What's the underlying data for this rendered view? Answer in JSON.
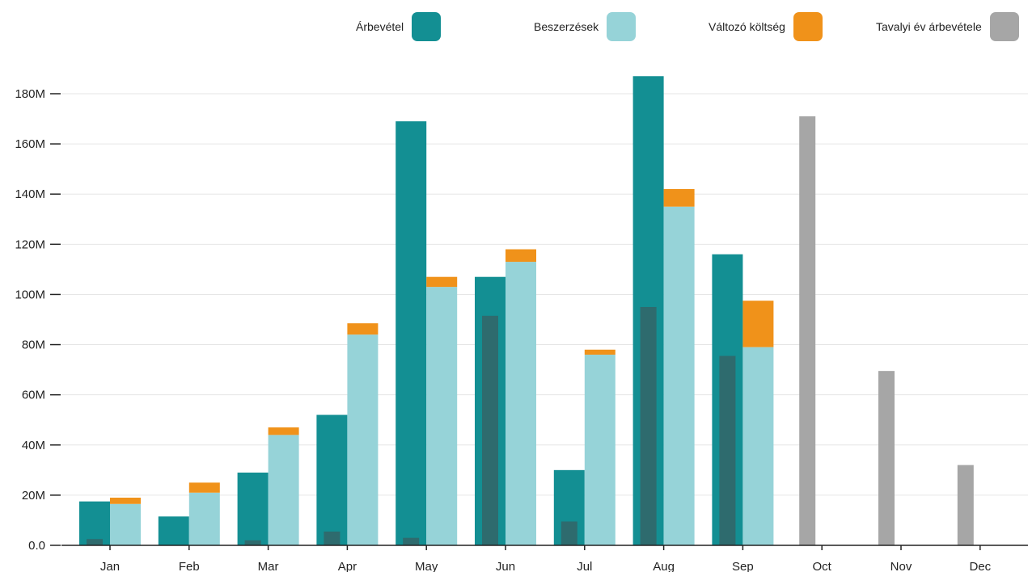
{
  "legend": {
    "revenue": "Árbevétel",
    "purchases": "Beszerzések",
    "variable_cost": "Változó költség",
    "last_year": "Tavalyi év árbevétele"
  },
  "colors": {
    "revenue": "#138f93",
    "purchases": "#96d3d8",
    "variable_cost": "#f0921a",
    "last_year": "#a6a6a6",
    "inner": "#2e6b6e",
    "grid": "#e6e6e6",
    "axis": "#222222"
  },
  "chart_data": {
    "type": "bar",
    "categories": [
      "Jan",
      "Feb",
      "Mar",
      "Apr",
      "May",
      "Jun",
      "Jul",
      "Aug",
      "Sep",
      "Oct",
      "Nov",
      "Dec"
    ],
    "ylim": [
      0,
      180
    ],
    "yticks": [
      0,
      20,
      40,
      60,
      80,
      100,
      120,
      140,
      160,
      180
    ],
    "ytick_labels": [
      "0.0",
      "20M",
      "40M",
      "60M",
      "80M",
      "100M",
      "120M",
      "140M",
      "160M",
      "180M"
    ],
    "grid": true,
    "legend_position": "top-right",
    "series": [
      {
        "name": "Árbevétel",
        "values": [
          17.5,
          11.5,
          29,
          52,
          169,
          107,
          30,
          187,
          116,
          null,
          null,
          null
        ]
      },
      {
        "name": "Beszerzések",
        "values": [
          16.5,
          21,
          44,
          84,
          103,
          113,
          76,
          135,
          79,
          null,
          null,
          null
        ]
      },
      {
        "name": "Változó költség",
        "values": [
          2.5,
          4,
          3,
          4.5,
          4,
          5,
          2,
          7,
          18.5,
          null,
          null,
          null
        ]
      },
      {
        "name": "Tavalyi év árbevétele",
        "values": [
          null,
          null,
          null,
          null,
          null,
          null,
          null,
          null,
          null,
          171,
          69.5,
          32
        ]
      },
      {
        "values": [
          2.5,
          0,
          2,
          5.5,
          3,
          91.5,
          9.5,
          95,
          75.5,
          null,
          null,
          null
        ]
      }
    ]
  }
}
